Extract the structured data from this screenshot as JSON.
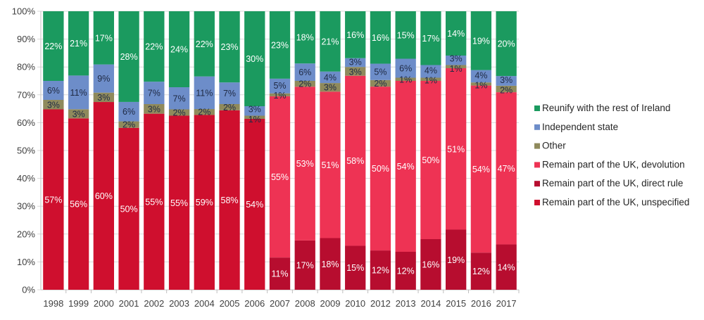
{
  "chart_data": {
    "type": "bar",
    "stacked": true,
    "normalized_100_percent": true,
    "categories": [
      "1998",
      "1999",
      "2000",
      "2001",
      "2002",
      "2003",
      "2004",
      "2005",
      "2006",
      "2007",
      "2008",
      "2009",
      "2010",
      "2012",
      "2013",
      "2014",
      "2015",
      "2016",
      "2017"
    ],
    "series": [
      {
        "name": "Remain part of the UK, unspecified",
        "color": "#cf0f2e",
        "values": [
          57,
          56,
          60,
          50,
          55,
          55,
          59,
          58,
          54,
          null,
          null,
          null,
          null,
          null,
          null,
          null,
          null,
          null,
          null
        ]
      },
      {
        "name": "Remain part of the UK, direct rule",
        "color": "#b70d2f",
        "values": [
          null,
          null,
          null,
          null,
          null,
          null,
          null,
          null,
          null,
          11,
          17,
          18,
          15,
          12,
          12,
          16,
          19,
          12,
          14
        ]
      },
      {
        "name": "Remain part of the UK, devolution",
        "color": "#ee3354",
        "values": [
          null,
          null,
          null,
          null,
          null,
          null,
          null,
          null,
          null,
          55,
          53,
          51,
          58,
          50,
          54,
          50,
          51,
          54,
          47
        ]
      },
      {
        "name": "Other",
        "color": "#8f8a5c",
        "values": [
          3,
          3,
          3,
          2,
          3,
          2,
          2,
          2,
          1,
          1,
          2,
          3,
          3,
          2,
          1,
          1,
          1,
          1,
          2
        ]
      },
      {
        "name": "Independent state",
        "color": "#6d8dc9",
        "values": [
          6,
          11,
          9,
          6,
          7,
          7,
          11,
          7,
          3,
          5,
          6,
          4,
          3,
          5,
          6,
          4,
          3,
          4,
          3
        ]
      },
      {
        "name": "Reunify with the rest of Ireland",
        "color": "#1b9a5f",
        "values": [
          22,
          21,
          17,
          28,
          22,
          24,
          22,
          23,
          30,
          23,
          18,
          21,
          16,
          16,
          15,
          17,
          14,
          19,
          20
        ]
      }
    ],
    "yticks": [
      "0%",
      "10%",
      "20%",
      "30%",
      "40%",
      "50%",
      "60%",
      "70%",
      "80%",
      "90%",
      "100%"
    ],
    "ylim": [
      0,
      100
    ],
    "grid": true,
    "legend_placement": "right",
    "legend_order": [
      "Reunify with the rest of Ireland",
      "Independent state",
      "Other",
      "Remain part of the UK, devolution",
      "Remain part of the UK, direct rule",
      "Remain part of the UK, unspecified"
    ]
  }
}
